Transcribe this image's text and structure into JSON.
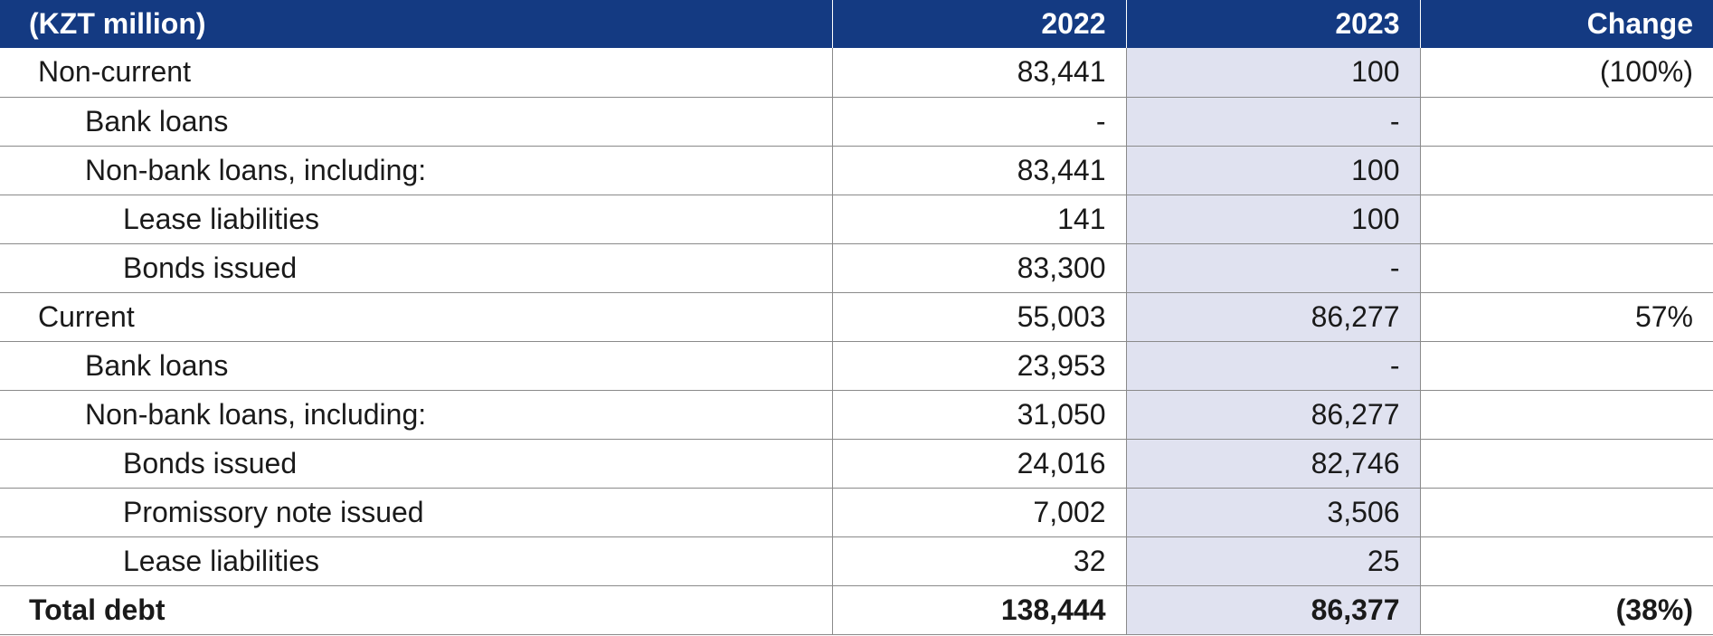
{
  "header": {
    "label": "(KZT million)",
    "col_2022": "2022",
    "col_2023": "2023",
    "col_change": "Change"
  },
  "colors": {
    "header_bg": "#143a82",
    "highlight_2023": "#e0e2f0"
  },
  "rows": [
    {
      "label": "Non-current",
      "y2022": "83,441",
      "y2023": "100",
      "change": "(100%)"
    },
    {
      "label": "Bank loans",
      "y2022": "-",
      "y2023": "-",
      "change": ""
    },
    {
      "label": "Non-bank loans, including:",
      "y2022": "83,441",
      "y2023": "100",
      "change": ""
    },
    {
      "label": "Lease liabilities",
      "y2022": "141",
      "y2023": "100",
      "change": ""
    },
    {
      "label": "Bonds issued",
      "y2022": "83,300",
      "y2023": "-",
      "change": ""
    },
    {
      "label": "Current",
      "y2022": "55,003",
      "y2023": "86,277",
      "change": "57%"
    },
    {
      "label": "Bank loans",
      "y2022": "23,953",
      "y2023": "-",
      "change": ""
    },
    {
      "label": "Non-bank loans, including:",
      "y2022": "31,050",
      "y2023": "86,277",
      "change": ""
    },
    {
      "label": "Bonds issued",
      "y2022": "24,016",
      "y2023": "82,746",
      "change": ""
    },
    {
      "label": "Promissory note issued",
      "y2022": "7,002",
      "y2023": "3,506",
      "change": ""
    },
    {
      "label": "Lease liabilities",
      "y2022": "32",
      "y2023": "25",
      "change": ""
    }
  ],
  "total": {
    "label": "Total debt",
    "y2022": "138,444",
    "y2023": "86,377",
    "change": "(38%)"
  }
}
